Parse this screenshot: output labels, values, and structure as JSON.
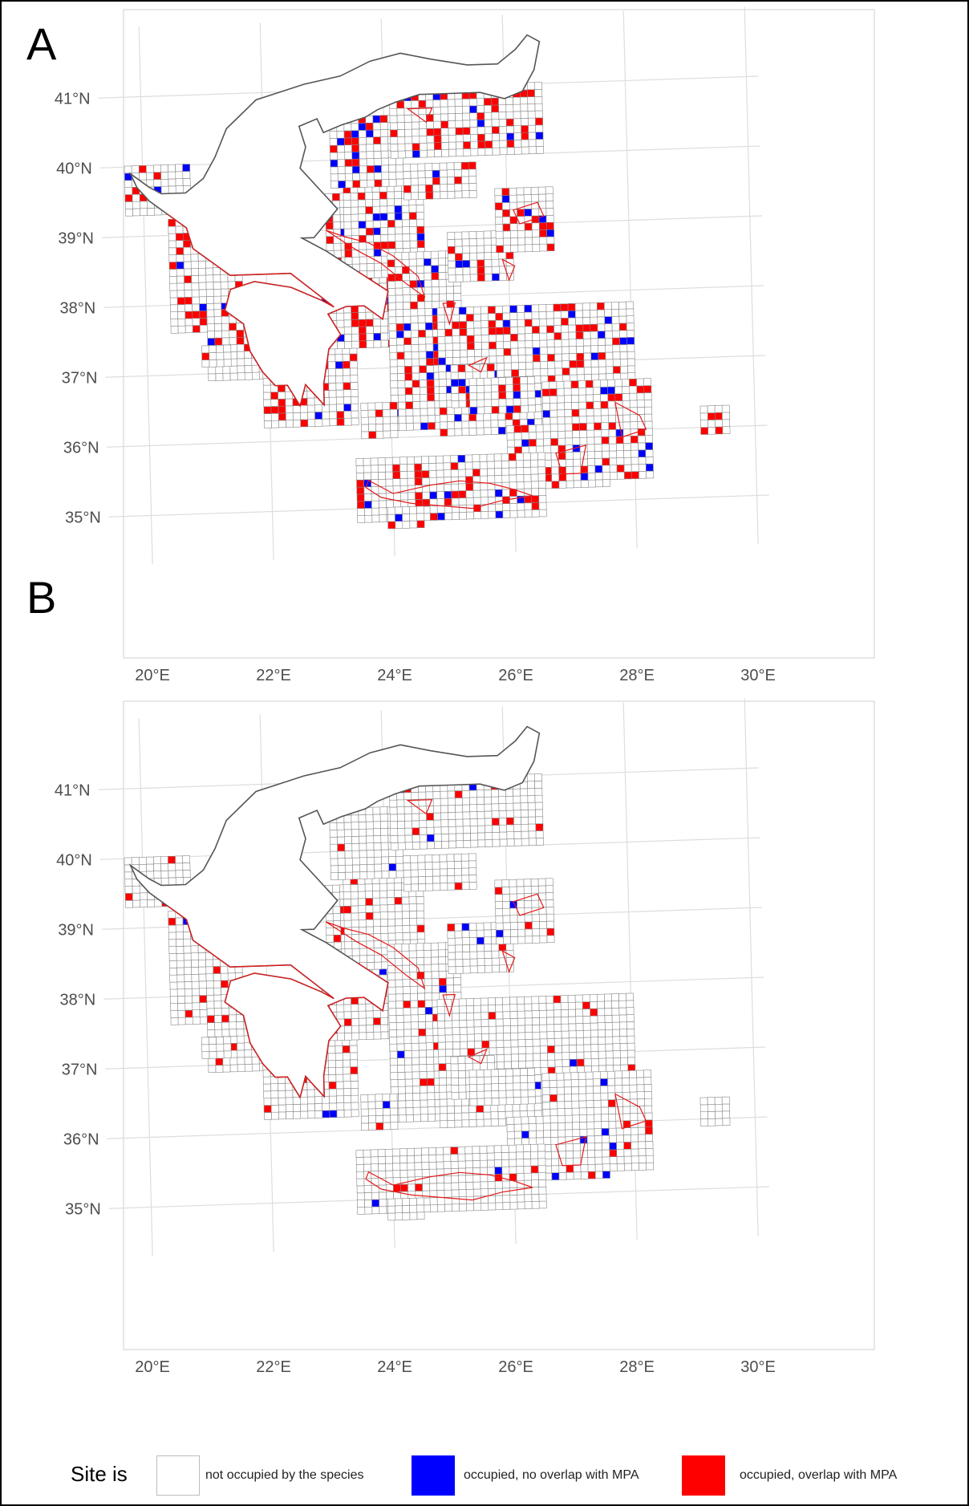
{
  "panels": [
    {
      "letter": "A"
    },
    {
      "letter": "B"
    }
  ],
  "axes": {
    "lat_labels": [
      "35°N",
      "36°N",
      "37°N",
      "38°N",
      "39°N",
      "40°N",
      "41°N"
    ],
    "lon_labels": [
      "20°E",
      "22°E",
      "24°E",
      "26°E",
      "28°E",
      "30°E"
    ]
  },
  "legend": {
    "title": "Site is",
    "items": [
      {
        "label": "not occupied by the species",
        "color": "#ffffff"
      },
      {
        "label": "occupied, no overlap with MPA",
        "color": "#0000ff"
      },
      {
        "label": "occupied, overlap with MPA",
        "color": "#ff0000"
      }
    ]
  },
  "colors": {
    "land_outline": "#555555",
    "grid_cell": "#888888",
    "mpa_outline": "#e41a1c",
    "graticule": "#dddddd"
  }
}
